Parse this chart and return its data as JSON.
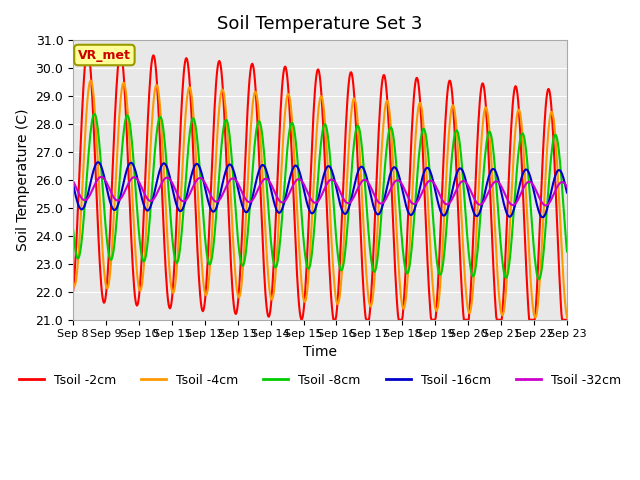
{
  "title": "Soil Temperature Set 3",
  "xlabel": "Time",
  "ylabel": "Soil Temperature (C)",
  "ylim": [
    21.0,
    31.0
  ],
  "yticks": [
    21.0,
    22.0,
    23.0,
    24.0,
    25.0,
    26.0,
    27.0,
    28.0,
    29.0,
    30.0,
    31.0
  ],
  "background_color": "#e8e8e8",
  "fig_background": "#ffffff",
  "series": [
    {
      "label": "Tsoil -2cm",
      "color": "#ff0000",
      "lw": 1.5
    },
    {
      "label": "Tsoil -4cm",
      "color": "#ff9900",
      "lw": 1.5
    },
    {
      "label": "Tsoil -8cm",
      "color": "#00cc00",
      "lw": 1.5
    },
    {
      "label": "Tsoil -16cm",
      "color": "#0000cc",
      "lw": 1.5
    },
    {
      "label": "Tsoil -32cm",
      "color": "#cc00cc",
      "lw": 1.5
    }
  ],
  "annotation_text": "VR_met",
  "annotation_color": "#cc0000",
  "annotation_bg": "#ffff99",
  "annotation_border": "#999900",
  "points_per_day": 48,
  "xtick_labels": [
    "Sep 8",
    "Sep 9",
    "Sep 10",
    "Sep 11",
    "Sep 12",
    "Sep 13",
    "Sep 14",
    "Sep 15",
    "Sep 16",
    "Sep 17",
    "Sep 18",
    "Sep 19",
    "Sep 20",
    "Sep 21",
    "Sep 22",
    "Sep 23"
  ]
}
